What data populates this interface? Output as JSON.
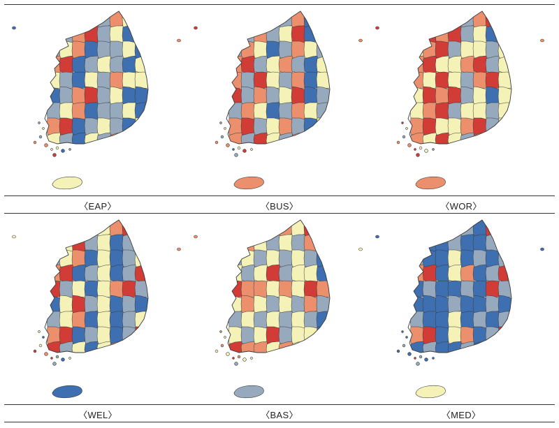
{
  "colors": {
    "class1": "#3e6fb0",
    "class2": "#96a9bd",
    "class3": "#f5f2b8",
    "class4": "#ec8f6c",
    "class5": "#d23c37"
  },
  "maps": [
    {
      "label": "〈EAP〉",
      "pattern": [
        3,
        2,
        1,
        3,
        2,
        4,
        3,
        3,
        1,
        2,
        4,
        5,
        2,
        3,
        1,
        1,
        2,
        3,
        4,
        1,
        2,
        2,
        3,
        1,
        4,
        5,
        1,
        2,
        3,
        2,
        1,
        3
      ],
      "jeju": 3
    },
    {
      "label": "〈BUS〉",
      "pattern": [
        4,
        2,
        5,
        3,
        2,
        4,
        1,
        3,
        5,
        2,
        4,
        2,
        3,
        5,
        1,
        2,
        2,
        4,
        3,
        1,
        2,
        4,
        3,
        2,
        4,
        5,
        2,
        3,
        4,
        2,
        1,
        3
      ],
      "jeju": 4
    },
    {
      "label": "〈WOR〉",
      "pattern": [
        4,
        3,
        5,
        3,
        2,
        4,
        5,
        3,
        3,
        5,
        4,
        5,
        2,
        3,
        1,
        3,
        3,
        4,
        5,
        2,
        3,
        3,
        2,
        3,
        4,
        5,
        3,
        3,
        4,
        5,
        2,
        3
      ],
      "jeju": 4
    },
    {
      "label": "〈WEL〉",
      "pattern": [
        5,
        2,
        3,
        1,
        3,
        4,
        5,
        2,
        1,
        3,
        5,
        2,
        3,
        1,
        2,
        1,
        2,
        3,
        4,
        1,
        3,
        1,
        2,
        3,
        4,
        5,
        1,
        2,
        3,
        1,
        2,
        5
      ],
      "jeju": 1
    },
    {
      "label": "〈BAS〉",
      "pattern": [
        5,
        4,
        4,
        3,
        4,
        3,
        5,
        4,
        3,
        4,
        3,
        2,
        3,
        2,
        4,
        2,
        2,
        3,
        2,
        3,
        2,
        3,
        2,
        1,
        3,
        2,
        3,
        5,
        2,
        3,
        3,
        1
      ],
      "jeju": 2
    },
    {
      "label": "〈MED〉",
      "pattern": [
        1,
        2,
        1,
        1,
        2,
        1,
        5,
        2,
        1,
        1,
        1,
        2,
        1,
        1,
        2,
        1,
        2,
        1,
        1,
        3,
        1,
        2,
        1,
        2,
        4,
        5,
        1,
        3,
        4,
        1,
        2,
        5
      ],
      "jeju": 3
    }
  ]
}
